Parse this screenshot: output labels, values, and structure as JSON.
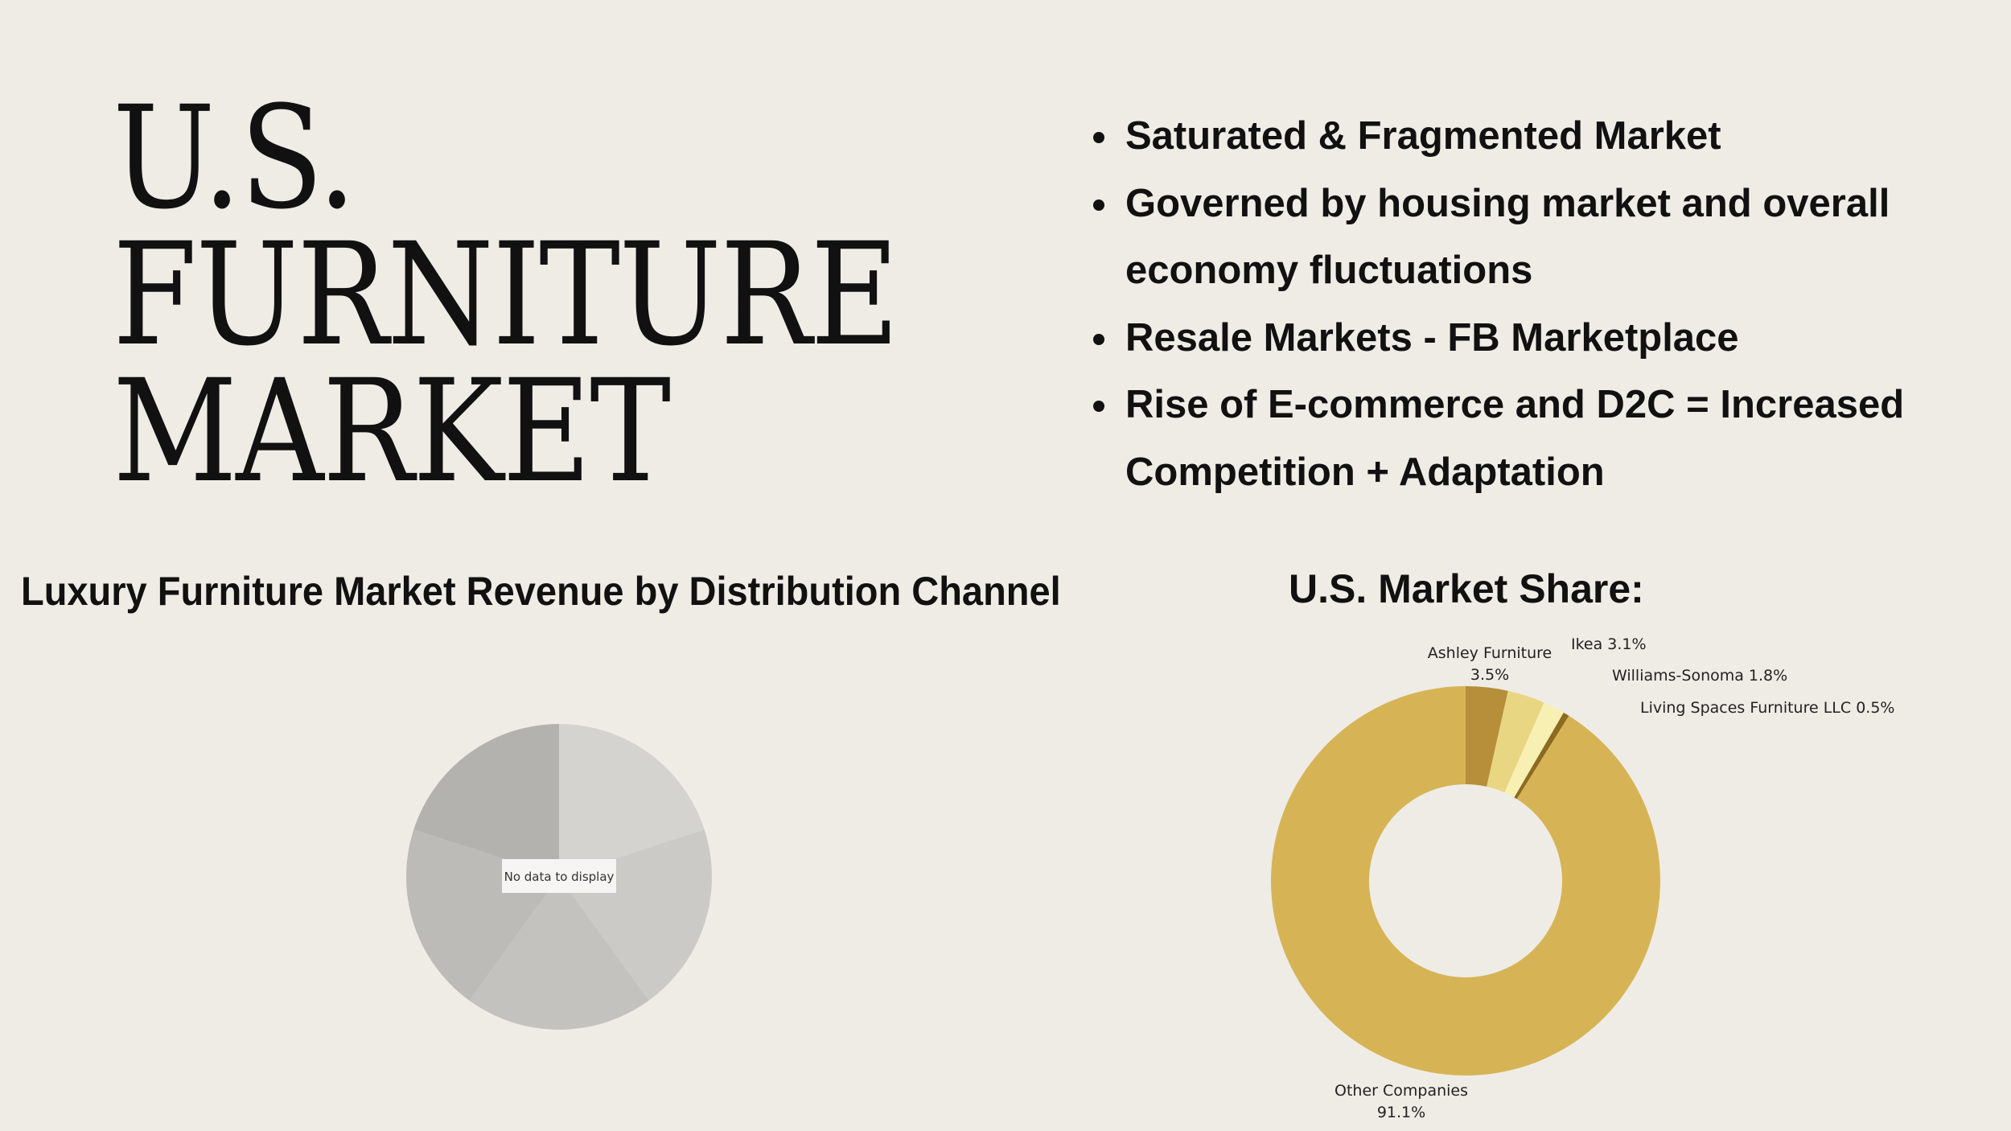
{
  "title_lines": [
    "U.S.",
    "FURNITURE",
    "MARKET"
  ],
  "bullets": [
    "Saturated & Fragmented Market",
    "Governed by housing market and overall economy fluctuations",
    "Resale Markets - FB Marketplace",
    "Rise of E-commerce and D2C = Increased Competition + Adaptation"
  ],
  "chart_data": [
    {
      "type": "pie",
      "title": "Luxury Furniture Market Revenue by Distribution Channel",
      "placeholder_text": "No data to display",
      "slices": [],
      "placeholder_colors": [
        "#d4d3cf",
        "#cbcac6",
        "#c3c2be",
        "#bcbbb7",
        "#b3b2ae"
      ]
    },
    {
      "type": "pie",
      "subtype": "donut",
      "title": "U.S. Market Share:",
      "categories": [
        "Ashley Furniture",
        "Ikea",
        "Williams-Sonoma",
        "Living Spaces Furniture LLC",
        "Other Companies"
      ],
      "values": [
        3.5,
        3.1,
        1.8,
        0.5,
        91.1
      ],
      "labels": [
        "Ashley Furniture\n3.5%",
        "Ikea 3.1%",
        "Williams-Sonoma 1.8%",
        "Living Spaces Furniture LLC 0.5%",
        "Other Companies\n91.1%"
      ],
      "colors": [
        "#b78f3a",
        "#e8d683",
        "#f8f0b3",
        "#8c6a20",
        "#d6b455"
      ],
      "unit": "%"
    }
  ]
}
